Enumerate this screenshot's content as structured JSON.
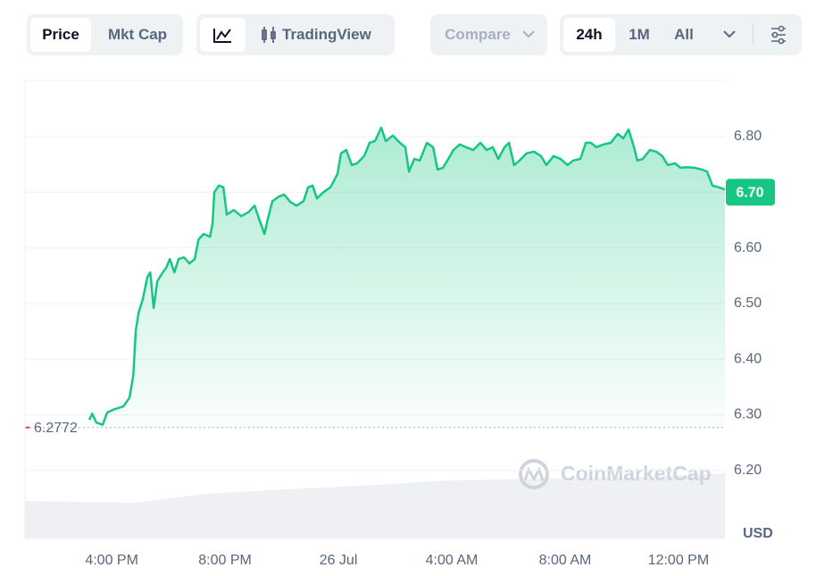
{
  "toolbar": {
    "price": "Price",
    "mkt_cap": "Mkt Cap",
    "trading_view": "TradingView",
    "compare": "Compare",
    "ranges": [
      "24h",
      "1M",
      "All"
    ]
  },
  "chart_data": {
    "type": "line",
    "watermark": "CoinMarketCap",
    "unit": "USD",
    "color": "#16c784",
    "x": [
      15.21,
      15.31,
      15.46,
      15.68,
      15.84,
      16.09,
      16.41,
      16.63,
      16.76,
      16.85,
      16.95,
      17.1,
      17.26,
      17.36,
      17.48,
      17.61,
      17.8,
      17.92,
      18.05,
      18.21,
      18.36,
      18.55,
      18.74,
      18.93,
      19.06,
      19.24,
      19.47,
      19.56,
      19.62,
      19.78,
      19.94,
      20.06,
      20.31,
      20.57,
      20.82,
      21.04,
      21.2,
      21.39,
      21.51,
      21.67,
      21.89,
      22.08,
      22.3,
      22.52,
      22.77,
      22.93,
      23.09,
      23.24,
      23.47,
      23.72,
      23.97,
      24.09,
      24.28,
      24.47,
      24.66,
      24.91,
      25.1,
      25.29,
      25.51,
      25.67,
      25.92,
      26.17,
      26.36,
      26.49,
      26.68,
      26.87,
      27.12,
      27.34,
      27.5,
      27.69,
      27.88,
      28.06,
      28.28,
      28.5,
      28.76,
      29.01,
      29.23,
      29.45,
      29.64,
      29.86,
      30.02,
      30.2,
      30.39,
      30.64,
      30.9,
      31.15,
      31.34,
      31.59,
      31.84,
      32.09,
      32.28,
      32.54,
      32.73,
      32.91,
      33.1,
      33.36,
      33.61,
      33.86,
      34.05,
      34.24,
      34.43,
      34.55,
      34.74,
      34.99,
      35.21,
      35.43,
      35.62,
      35.88,
      36.07,
      36.32,
      36.57,
      36.82,
      37.01,
      37.2,
      37.42,
      37.64
    ],
    "values": [
      6.291,
      6.302,
      6.286,
      6.282,
      6.304,
      6.31,
      6.315,
      6.331,
      6.371,
      6.452,
      6.484,
      6.508,
      6.548,
      6.556,
      6.492,
      6.54,
      6.556,
      6.564,
      6.58,
      6.556,
      6.58,
      6.583,
      6.572,
      6.58,
      6.615,
      6.625,
      6.62,
      6.644,
      6.7,
      6.712,
      6.709,
      6.66,
      6.668,
      6.657,
      6.664,
      6.676,
      6.652,
      6.625,
      6.652,
      6.684,
      6.692,
      6.696,
      6.683,
      6.676,
      6.684,
      6.709,
      6.712,
      6.689,
      6.7,
      6.709,
      6.733,
      6.77,
      6.776,
      6.749,
      6.752,
      6.765,
      6.789,
      6.792,
      6.816,
      6.792,
      6.802,
      6.789,
      6.781,
      6.737,
      6.76,
      6.757,
      6.789,
      6.781,
      6.741,
      6.744,
      6.76,
      6.776,
      6.786,
      6.781,
      6.776,
      6.789,
      6.776,
      6.781,
      6.76,
      6.781,
      6.789,
      6.749,
      6.757,
      6.77,
      6.773,
      6.765,
      6.749,
      6.765,
      6.76,
      6.749,
      6.757,
      6.76,
      6.789,
      6.789,
      6.781,
      6.786,
      6.789,
      6.805,
      6.797,
      6.813,
      6.781,
      6.757,
      6.76,
      6.776,
      6.773,
      6.765,
      6.749,
      6.752,
      6.744,
      6.745,
      6.744,
      6.741,
      6.737,
      6.712,
      6.709,
      6.705
    ],
    "xlim": [
      12.94,
      37.64
    ],
    "xticks": [
      {
        "value": 16,
        "label": "4:00 PM"
      },
      {
        "value": 20,
        "label": "8:00 PM"
      },
      {
        "value": 24,
        "label": "26 Jul"
      },
      {
        "value": 28,
        "label": "4:00 AM"
      },
      {
        "value": 32,
        "label": "8:00 AM"
      },
      {
        "value": 36,
        "label": "12:00 PM"
      }
    ],
    "ylim": [
      6.1,
      6.9
    ],
    "yticks": [
      {
        "value": 6.2,
        "label": "6.20"
      },
      {
        "value": 6.3,
        "label": "6.30"
      },
      {
        "value": 6.4,
        "label": "6.40"
      },
      {
        "value": 6.5,
        "label": "6.50"
      },
      {
        "value": 6.6,
        "label": "6.60"
      },
      {
        "value": 6.7,
        "label": "6.70"
      },
      {
        "value": 6.8,
        "label": "6.80"
      }
    ],
    "open_price": 6.2772,
    "current_price": {
      "value": 6.7,
      "label": "6.70"
    },
    "grid": true
  }
}
